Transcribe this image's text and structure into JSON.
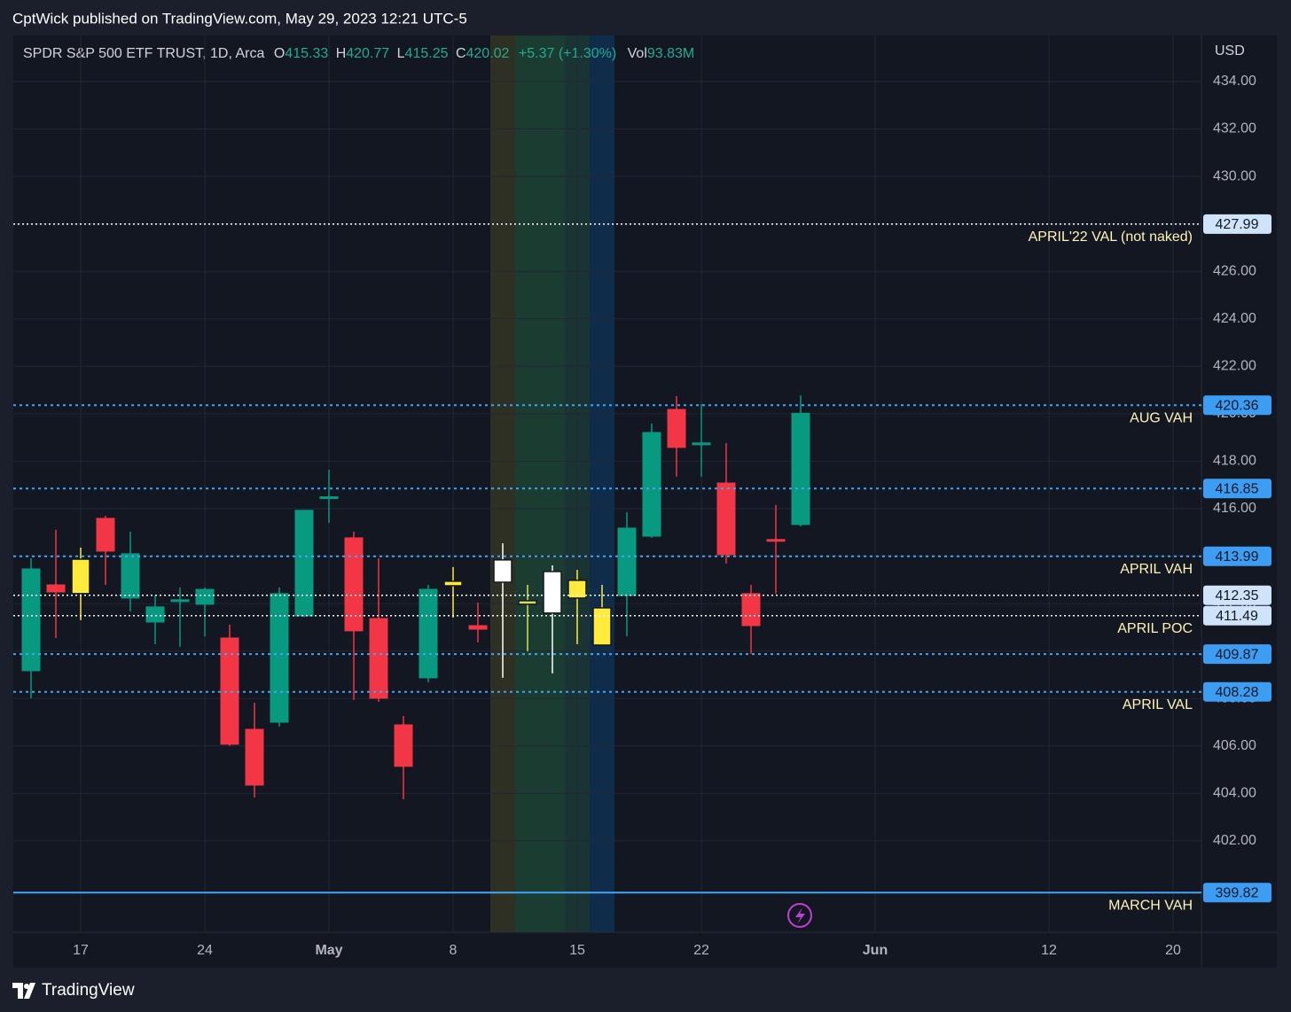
{
  "header": {
    "text": "CptWick published on TradingView.com, May 29, 2023 12:21 UTC-5"
  },
  "chart_data": {
    "type": "candlestick",
    "title": "SPDR S&P 500 ETF TRUST, 1D, Arca",
    "legend_labels": [
      "O",
      "H",
      "L",
      "C"
    ],
    "change": "+5.37 (+1.30%)",
    "volume_label": "Vol",
    "volume": "93.83M",
    "currency": "USD",
    "categories": [
      null,
      null,
      "17",
      null,
      null,
      null,
      null,
      "24",
      null,
      null,
      null,
      null,
      "May",
      null,
      null,
      null,
      null,
      "8",
      null,
      null,
      null,
      null,
      "15",
      null,
      null,
      null,
      null,
      "22",
      null,
      null,
      null,
      null,
      null,
      null,
      "Jun",
      null,
      null,
      null,
      null,
      null,
      null,
      "12",
      null,
      null,
      null,
      null,
      "20",
      null
    ],
    "open": [
      409.17,
      412.79,
      412.42,
      415.59,
      412.23,
      411.22,
      412.1,
      411.97,
      410.55,
      406.7,
      407.0,
      411.48,
      416.45,
      414.77,
      411.37,
      406.89,
      408.87,
      412.75,
      411.07,
      413.84,
      411.97,
      413.35,
      412.23,
      411.82,
      412.34,
      414.84,
      420.18,
      418.69,
      417.08,
      412.42,
      414.7,
      415.33,
      null,
      null,
      null,
      null,
      null,
      null,
      null,
      null,
      null,
      null,
      null,
      null,
      null,
      null,
      null,
      null
    ],
    "high": [
      413.91,
      415.11,
      414.36,
      415.7,
      415.03,
      412.34,
      412.68,
      412.68,
      411.11,
      407.82,
      412.68,
      415.95,
      417.64,
      415.03,
      413.91,
      407.26,
      412.79,
      413.54,
      412.04,
      414.54,
      412.79,
      413.61,
      413.42,
      412.79,
      415.85,
      419.59,
      420.74,
      420.41,
      418.76,
      412.79,
      416.15,
      420.77,
      null,
      null,
      null,
      null,
      null,
      null,
      null,
      null,
      null,
      null,
      null,
      null,
      null,
      null,
      null,
      null
    ],
    "low": [
      408.01,
      410.55,
      411.3,
      412.79,
      411.67,
      410.29,
      410.18,
      410.62,
      406.0,
      403.83,
      406.82,
      411.43,
      415.4,
      407.94,
      407.86,
      403.75,
      408.68,
      411.41,
      410.36,
      408.87,
      409.99,
      409.06,
      410.29,
      410.25,
      410.62,
      414.77,
      417.35,
      417.35,
      413.69,
      409.88,
      412.42,
      415.25,
      null,
      null,
      null,
      null,
      null,
      null,
      null,
      null,
      null,
      null,
      null,
      null,
      null,
      null,
      null,
      null
    ],
    "close": [
      413.46,
      412.49,
      413.87,
      414.21,
      414.1,
      411.86,
      412.16,
      412.6,
      406.07,
      404.35,
      412.42,
      415.93,
      416.5,
      410.85,
      408.01,
      405.14,
      412.6,
      412.94,
      410.92,
      412.9,
      412.12,
      411.6,
      412.98,
      410.25,
      415.18,
      419.21,
      418.58,
      418.77,
      414.06,
      411.07,
      414.65,
      420.02,
      null,
      null,
      null,
      null,
      null,
      null,
      null,
      null,
      null,
      null,
      null,
      null,
      null,
      null,
      null,
      null
    ],
    "colors": [
      "#089981",
      "#f23645",
      "#ffeb3b",
      "#f23645",
      "#089981",
      "#089981",
      "#089981",
      "#089981",
      "#f23645",
      "#f23645",
      "#089981",
      "#089981",
      "#089981",
      "#f23645",
      "#f23645",
      "#f23645",
      "#089981",
      "#ffeb3b",
      "#f23645",
      "#ffffff",
      "#d4e157",
      "#ffffff",
      "#ffeb3b",
      "#ffeb3b",
      "#089981",
      "#089981",
      "#f23645",
      "#089981",
      "#f23645",
      "#f23645",
      "#f23645",
      "#089981",
      null,
      null,
      null,
      null,
      null,
      null,
      null,
      null,
      null,
      null,
      null,
      null,
      null,
      null,
      null,
      null
    ],
    "ylim": [
      398.15,
      435.94
    ],
    "yticks": [
      {
        "value": 402,
        "label": "402.00"
      },
      {
        "value": 404,
        "label": "404.00"
      },
      {
        "value": 406,
        "label": "406.00"
      },
      {
        "value": 408,
        "label": "408.00"
      },
      {
        "value": 410,
        "label": "410.00"
      },
      {
        "value": 412,
        "label": "412.00"
      },
      {
        "value": 414,
        "label": "414.00"
      },
      {
        "value": 416,
        "label": "416.00"
      },
      {
        "value": 418,
        "label": "418.00"
      },
      {
        "value": 420,
        "label": "420.00"
      },
      {
        "value": 422,
        "label": "422.00"
      },
      {
        "value": 424,
        "label": "424.00"
      },
      {
        "value": 426,
        "label": "426.00"
      },
      {
        "value": 428,
        "label": "428.00"
      },
      {
        "value": 430,
        "label": "430.00"
      },
      {
        "value": 432,
        "label": "432.00"
      },
      {
        "value": 434,
        "label": "434.00"
      }
    ],
    "grid": true,
    "levels": [
      {
        "value": 427.99,
        "label": "APRIL'22 VAL (not naked)",
        "color": "#ffffff",
        "style": "dotted"
      },
      {
        "value": 420.36,
        "label": "AUG VAH",
        "color": "#42a5f5",
        "style": "dotted"
      },
      {
        "value": 416.85,
        "color": "#42a5f5",
        "style": "dotted"
      },
      {
        "value": 413.99,
        "label": "APRIL VAH",
        "color": "#42a5f5",
        "style": "dotted"
      },
      {
        "value": 412.35,
        "color": "#ffffff",
        "style": "dotted"
      },
      {
        "value": 411.49,
        "label": "APRIL POC",
        "color": "#ffffff",
        "style": "dotted"
      },
      {
        "value": 409.87,
        "color": "#42a5f5",
        "style": "dotted"
      },
      {
        "value": 408.28,
        "label": "APRIL VAL",
        "color": "#42a5f5",
        "style": "dotted"
      },
      {
        "value": 399.82,
        "label": "MARCH VAH",
        "color": "#42a5f5",
        "style": "solid"
      }
    ]
  },
  "footer": {
    "brand": "TradingView"
  }
}
